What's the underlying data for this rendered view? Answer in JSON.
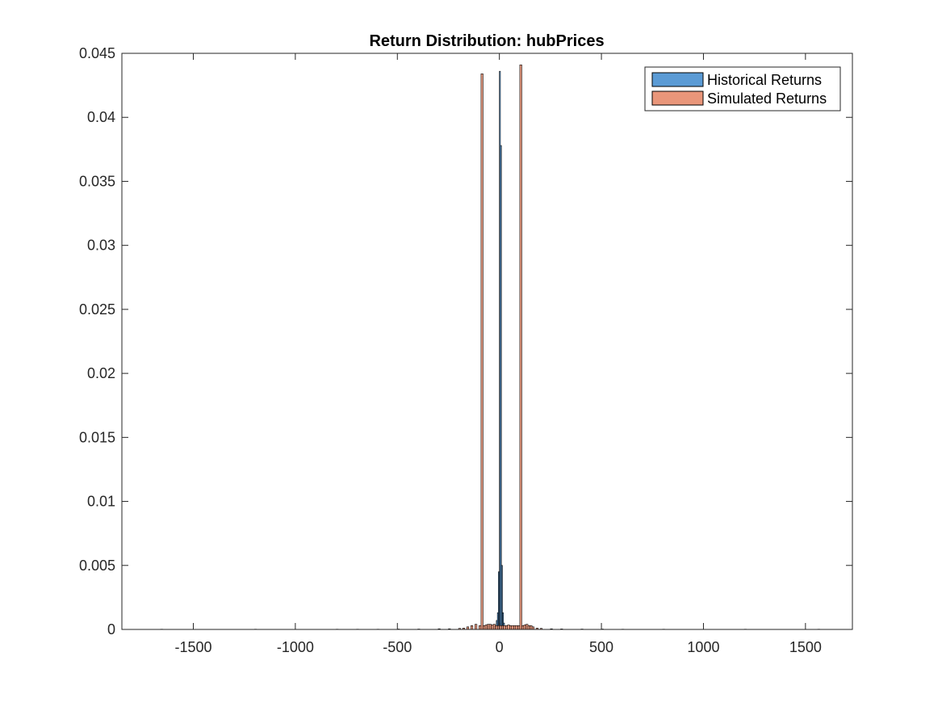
{
  "chart_data": {
    "type": "bar",
    "title": "Return Distribution: hubPrices",
    "xlabel": "",
    "ylabel": "",
    "xlim": [
      -1850,
      1730
    ],
    "ylim": [
      0,
      0.045
    ],
    "xticks": [
      -1500,
      -1000,
      -500,
      0,
      500,
      1000,
      1500
    ],
    "xtick_labels": [
      "-1500",
      "-1000",
      "-500",
      "0",
      "500",
      "1000",
      "1500"
    ],
    "yticks": [
      0,
      0.005,
      0.01,
      0.015,
      0.02,
      0.025,
      0.03,
      0.035,
      0.04,
      0.045
    ],
    "ytick_labels": [
      "0",
      "0.005",
      "0.01",
      "0.015",
      "0.02",
      "0.025",
      "0.03",
      "0.035",
      "0.04",
      "0.045"
    ],
    "grid": false,
    "legend_position": "top-right",
    "series": [
      {
        "name": "Historical Returns",
        "color": "#5b9bd5",
        "bin_width": 5,
        "x": [
          -20,
          -15,
          -10,
          -5,
          0,
          5,
          10,
          15,
          20,
          25
        ],
        "values": [
          0.0002,
          0.0007,
          0.0013,
          0.0045,
          0.0436,
          0.0378,
          0.005,
          0.0013,
          0.0005,
          0.0002
        ]
      },
      {
        "name": "Simulated Returns",
        "color": "#e9967a",
        "bin_width": 10,
        "x": [
          -1660,
          -1200,
          -800,
          -700,
          -600,
          -500,
          -400,
          -300,
          -250,
          -200,
          -180,
          -160,
          -140,
          -120,
          -100,
          -90,
          -80,
          -70,
          -60,
          -50,
          -40,
          -30,
          -20,
          -10,
          0,
          10,
          20,
          30,
          40,
          50,
          60,
          70,
          80,
          90,
          100,
          110,
          120,
          130,
          140,
          150,
          160,
          180,
          200,
          250,
          300,
          400,
          500,
          600,
          800,
          1200,
          1560
        ],
        "values": [
          2e-05,
          2e-05,
          2e-05,
          2e-05,
          2e-05,
          3e-05,
          3e-05,
          5e-05,
          5e-05,
          8e-05,
          0.0001,
          0.0002,
          0.0003,
          0.0004,
          0.0003,
          0.0434,
          0.0003,
          0.00035,
          0.0004,
          0.0004,
          0.00035,
          0.0004,
          0.0003,
          0.0003,
          0.0003,
          0.0003,
          0.0003,
          0.0003,
          0.00035,
          0.0003,
          0.0003,
          0.0003,
          0.0003,
          0.0003,
          0.0441,
          0.0003,
          0.00035,
          0.0004,
          0.0003,
          0.0003,
          0.0002,
          0.0001,
          8e-05,
          5e-05,
          4e-05,
          3e-05,
          3e-05,
          2e-05,
          2e-05,
          2e-05,
          2e-05
        ]
      }
    ]
  }
}
